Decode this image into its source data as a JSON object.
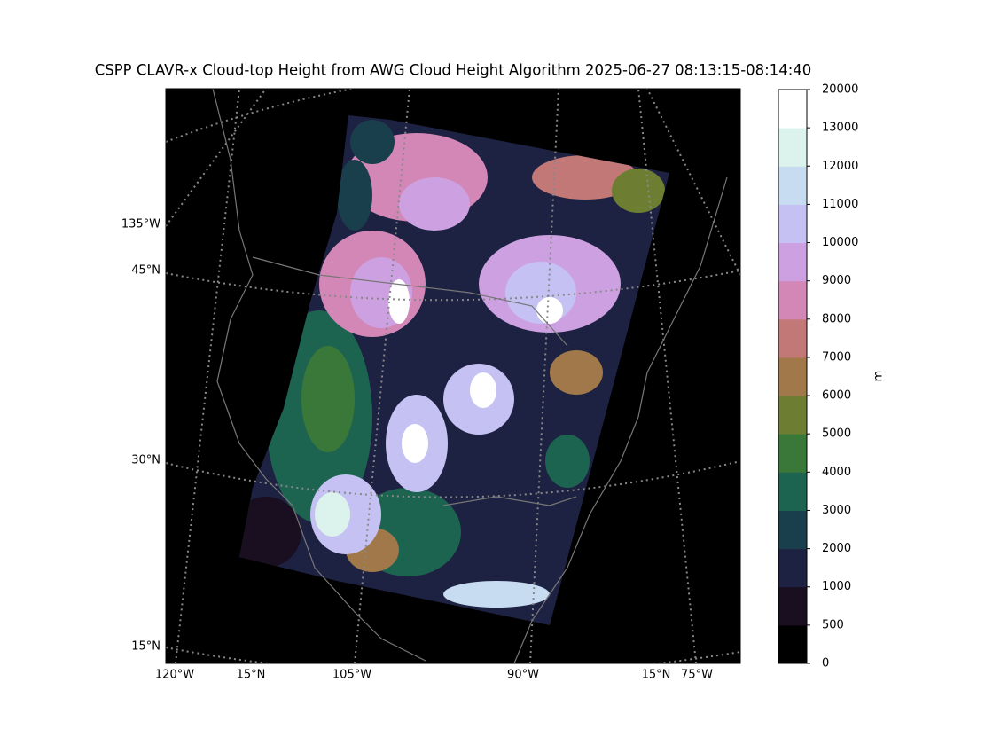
{
  "map": {
    "title": "CSPP CLAVR-x Cloud-top Height from AWG Cloud Height Algorithm 2025-06-27 08:13:15-08:14:40",
    "left_labels": [
      "135°W",
      "45°N",
      "30°N",
      "15°N"
    ],
    "bottom_labels": [
      "120°W",
      "15°N",
      "105°W",
      "90°W",
      "15°N",
      "75°W"
    ]
  },
  "colorbar": {
    "ticks": [
      0,
      500,
      1000,
      2000,
      3000,
      4000,
      5000,
      6000,
      7000,
      8000,
      9000,
      10000,
      11000,
      12000,
      13000,
      20000
    ],
    "colors": [
      "#000000",
      "#1a0f20",
      "#1e2242",
      "#193f4d",
      "#1d6450",
      "#3a783a",
      "#6d7e33",
      "#a07849",
      "#c27876",
      "#d387b6",
      "#cda1e1",
      "#c5c1f2",
      "#c8dcf1",
      "#dcf2ec",
      "#ffffff"
    ],
    "label": "m"
  }
}
